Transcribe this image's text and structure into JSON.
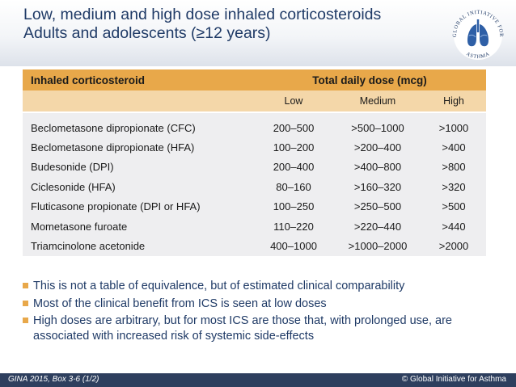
{
  "title": {
    "line1": "Low, medium and high dose inhaled corticosteroids",
    "line2": "Adults and adolescents (≥12 years)"
  },
  "logo": {
    "icon": "gina-logo-icon",
    "text_top": "GLOBAL INITIATIVE FOR",
    "text_bottom": "ASTHMA"
  },
  "table": {
    "header_main": "Inhaled corticosteroid",
    "header_dose": "Total daily dose (mcg)",
    "subheaders": [
      "Low",
      "Medium",
      "High"
    ],
    "rows": [
      [
        "Beclometasone dipropionate (CFC)",
        "200–500",
        ">500–1000",
        ">1000"
      ],
      [
        "Beclometasone dipropionate (HFA)",
        "100–200",
        ">200–400",
        ">400"
      ],
      [
        "Budesonide (DPI)",
        "200–400",
        ">400–800",
        ">800"
      ],
      [
        "Ciclesonide (HFA)",
        "80–160",
        ">160–320",
        ">320"
      ],
      [
        "Fluticasone propionate (DPI or HFA)",
        "100–250",
        ">250–500",
        ">500"
      ],
      [
        "Mometasone furoate",
        "110–220",
        ">220–440",
        ">440"
      ],
      [
        "Triamcinolone acetonide",
        "400–1000",
        ">1000–2000",
        ">2000"
      ]
    ]
  },
  "bullets": [
    "This is not a table of equivalence, but of estimated clinical comparability",
    "Most of the clinical benefit from ICS is seen at low doses",
    "High doses are arbitrary, but for most ICS are those that, with prolonged use, are associated with increased risk of systemic side-effects"
  ],
  "footer": {
    "left": "GINA 2015, Box 3-6 (1/2)",
    "right": "© Global Initiative for Asthma"
  },
  "colors": {
    "header_orange": "#e8a84a",
    "subheader_orange": "#f4d7a9",
    "row_gray": "#eeeef0",
    "title_blue": "#1f3a66",
    "footer_navy": "#2e3f5e"
  }
}
